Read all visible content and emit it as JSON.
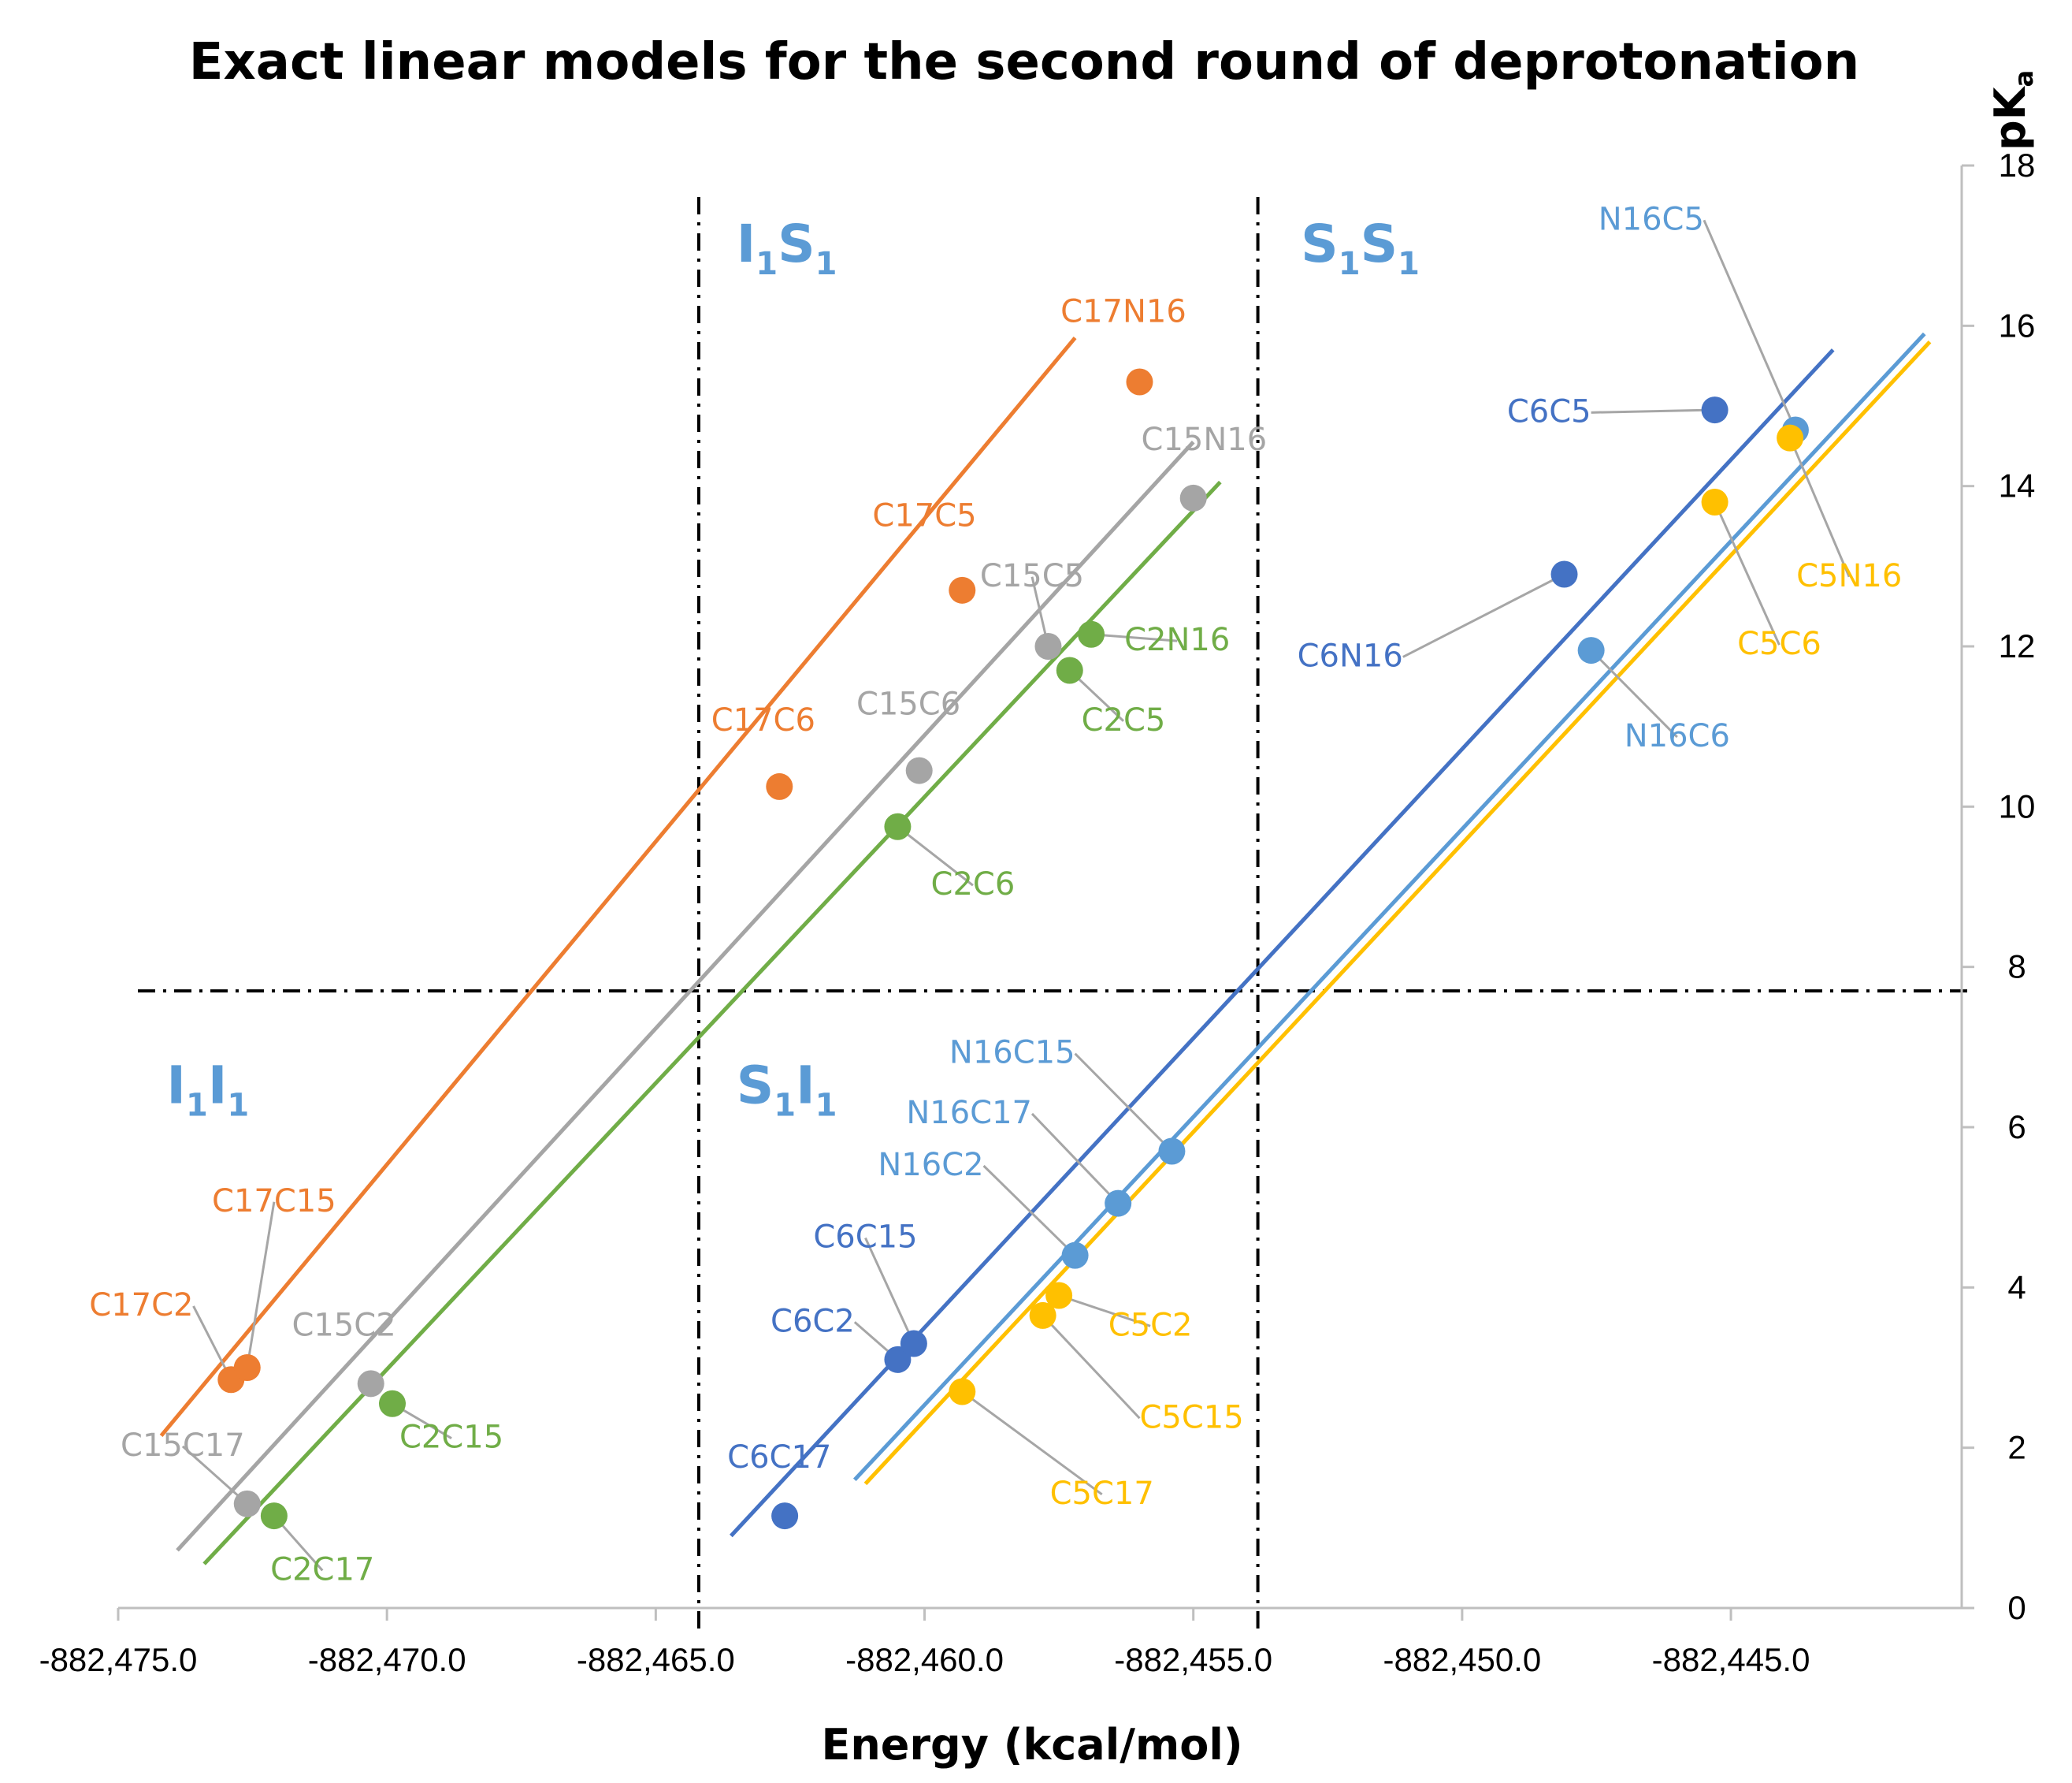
{
  "chart_data": {
    "type": "scatter",
    "title": "Exact linear models for the second round of deprotonation",
    "xlabel": "Energy (kcal/mol)",
    "ylabel": "pKa",
    "ylabel_main": "pK",
    "ylabel_sub": "a",
    "xlim": [
      -882475.0,
      -882441.0
    ],
    "ylim": [
      0,
      18
    ],
    "xticks": [
      -882475.0,
      -882470.0,
      -882465.0,
      -882460.0,
      -882455.0,
      -882450.0,
      -882445.0
    ],
    "xtick_labels": [
      "-882,475.0",
      "-882,470.0",
      "-882,465.0",
      "-882,460.0",
      "-882,455.0",
      "-882,450.0",
      "-882,445.0"
    ],
    "yticks": [
      0,
      2,
      4,
      6,
      8,
      10,
      12,
      14,
      16,
      18
    ],
    "ytick_labels": [
      "0",
      "2",
      "4",
      "6",
      "8",
      "10",
      "12",
      "14",
      "16",
      "18"
    ],
    "divider_x": [
      -882464.2,
      -882453.8
    ],
    "divider_y": 7.7,
    "regions": [
      {
        "main": "I",
        "sub1": "1",
        "main2": "I",
        "sub2": "1",
        "x": -882474.1,
        "y": 6.3
      },
      {
        "main": "I",
        "sub1": "1",
        "main2": "S",
        "sub2": "1",
        "x": -882463.5,
        "y": 16.8
      },
      {
        "main": "S",
        "sub1": "1",
        "main2": "I",
        "sub2": "1",
        "x": -882463.5,
        "y": 6.3
      },
      {
        "main": "S",
        "sub1": "1",
        "main2": "S",
        "sub2": "1",
        "x": -882453.0,
        "y": 16.8
      }
    ],
    "series": [
      {
        "name": "C17 (orange)",
        "color": "#ed7d31",
        "line": [
          [
            -882474.2,
            2.15
          ],
          [
            -882457.2,
            15.85
          ]
        ],
        "points": [
          {
            "label": "C17C2",
            "x": -882472.9,
            "y": 2.85,
            "lx": -882473.6,
            "ly": 3.65,
            "anchor": "end",
            "leader": true
          },
          {
            "label": "C17C15",
            "x": -882472.6,
            "y": 3.0,
            "lx": -882472.1,
            "ly": 4.95,
            "anchor": "middle",
            "leader": true
          },
          {
            "label": "C17C6",
            "x": -882462.7,
            "y": 10.25,
            "lx": -882463.0,
            "ly": 10.95,
            "anchor": "middle",
            "leader": false
          },
          {
            "label": "C17C5",
            "x": -882459.3,
            "y": 12.7,
            "lx": -882460.0,
            "ly": 13.5,
            "anchor": "middle",
            "leader": false
          },
          {
            "label": "C17N16",
            "x": -882456.0,
            "y": 15.3,
            "lx": -882456.3,
            "ly": 16.05,
            "anchor": "middle",
            "leader": false
          }
        ]
      },
      {
        "name": "C15 (gray)",
        "color": "#a5a5a5",
        "line": [
          [
            -882473.9,
            0.72
          ],
          [
            -882455.0,
            14.55
          ]
        ],
        "points": [
          {
            "label": "C15C17",
            "x": -882472.6,
            "y": 1.3,
            "lx": -882473.8,
            "ly": 1.9,
            "anchor": "middle",
            "leader": true
          },
          {
            "label": "C15C2",
            "x": -882470.3,
            "y": 2.8,
            "lx": -882470.8,
            "ly": 3.4,
            "anchor": "middle",
            "leader": false
          },
          {
            "label": "C15C6",
            "x": -882460.1,
            "y": 10.45,
            "lx": -882460.3,
            "ly": 11.15,
            "anchor": "middle",
            "leader": false
          },
          {
            "label": "C15C5",
            "x": -882457.7,
            "y": 12.0,
            "lx": -882458.0,
            "ly": 12.75,
            "anchor": "middle",
            "leader": true
          },
          {
            "label": "C15N16",
            "x": -882455.0,
            "y": 13.85,
            "lx": -882454.8,
            "ly": 14.45,
            "anchor": "middle",
            "leader": false
          }
        ]
      },
      {
        "name": "C2 (green)",
        "color": "#70ad47",
        "line": [
          [
            -882473.4,
            0.55
          ],
          [
            -882454.5,
            14.05
          ]
        ],
        "points": [
          {
            "label": "C2C17",
            "x": -882472.1,
            "y": 1.15,
            "lx": -882471.2,
            "ly": 0.35,
            "anchor": "middle",
            "leader": true
          },
          {
            "label": "C2C15",
            "x": -882469.9,
            "y": 2.55,
            "lx": -882468.8,
            "ly": 2.0,
            "anchor": "middle",
            "leader": true
          },
          {
            "label": "C2C6",
            "x": -882460.5,
            "y": 9.75,
            "lx": -882459.1,
            "ly": 8.9,
            "anchor": "middle",
            "leader": true
          },
          {
            "label": "C2C5",
            "x": -882457.3,
            "y": 11.7,
            "lx": -882456.3,
            "ly": 10.95,
            "anchor": "middle",
            "leader": true
          },
          {
            "label": "C2N16",
            "x": -882456.9,
            "y": 12.15,
            "lx": -882455.3,
            "ly": 11.95,
            "anchor": "middle",
            "leader": true
          }
        ]
      },
      {
        "name": "C6 (dark blue)",
        "color": "#4472c4",
        "line": [
          [
            -882463.6,
            0.9
          ],
          [
            -882443.1,
            15.7
          ]
        ],
        "points": [
          {
            "label": "C6C17",
            "x": -882462.6,
            "y": 1.15,
            "lx": -882462.7,
            "ly": 1.75,
            "anchor": "middle",
            "leader": false
          },
          {
            "label": "C6C2",
            "x": -882460.5,
            "y": 3.1,
            "lx": -882461.3,
            "ly": 3.45,
            "anchor": "end",
            "leader": true
          },
          {
            "label": "C6C15",
            "x": -882460.2,
            "y": 3.3,
            "lx": -882461.1,
            "ly": 4.5,
            "anchor": "middle",
            "leader": true
          },
          {
            "label": "C6N16",
            "x": -882448.1,
            "y": 12.9,
            "lx": -882451.1,
            "ly": 11.75,
            "anchor": "end",
            "leader": true
          },
          {
            "label": "C6C5",
            "x": -882445.3,
            "y": 14.95,
            "lx": -882447.6,
            "ly": 14.8,
            "anchor": "end",
            "leader": true
          }
        ]
      },
      {
        "name": "N16 (light blue)",
        "color": "#5b9bd5",
        "line": [
          [
            -882461.3,
            1.6
          ],
          [
            -882441.4,
            15.9
          ]
        ],
        "points": [
          {
            "label": "N16C2",
            "x": -882457.2,
            "y": 4.4,
            "lx": -882458.9,
            "ly": 5.4,
            "anchor": "end",
            "leader": true
          },
          {
            "label": "N16C17",
            "x": -882456.4,
            "y": 5.05,
            "lx": -882458.0,
            "ly": 6.05,
            "anchor": "end",
            "leader": true
          },
          {
            "label": "N16C15",
            "x": -882455.4,
            "y": 5.7,
            "lx": -882457.2,
            "ly": 6.8,
            "anchor": "end",
            "leader": true
          },
          {
            "label": "N16C6",
            "x": -882447.6,
            "y": 11.95,
            "lx": -882446.0,
            "ly": 10.75,
            "anchor": "middle",
            "leader": true
          },
          {
            "label": "N16C5",
            "x": -882443.8,
            "y": 14.7,
            "lx": -882445.5,
            "ly": 17.2,
            "anchor": "end",
            "leader": true
          }
        ]
      },
      {
        "name": "C5 (yellow)",
        "color": "#ffc000",
        "line": [
          [
            -882461.1,
            1.55
          ],
          [
            -882441.3,
            15.8
          ]
        ],
        "points": [
          {
            "label": "C5C17",
            "x": -882459.3,
            "y": 2.7,
            "lx": -882456.7,
            "ly": 1.3,
            "anchor": "middle",
            "leader": true
          },
          {
            "label": "C5C15",
            "x": -882457.8,
            "y": 3.65,
            "lx": -882456.0,
            "ly": 2.25,
            "anchor": "start",
            "leader": true
          },
          {
            "label": "C5C2",
            "x": -882457.5,
            "y": 3.9,
            "lx": -882455.8,
            "ly": 3.4,
            "anchor": "middle",
            "leader": true
          },
          {
            "label": "C5C6",
            "x": -882445.3,
            "y": 13.8,
            "lx": -882444.1,
            "ly": 11.9,
            "anchor": "middle",
            "leader": true
          },
          {
            "label": "C5N16",
            "x": -882443.9,
            "y": 14.6,
            "lx": -882442.8,
            "ly": 12.75,
            "anchor": "middle",
            "leader": true
          }
        ]
      }
    ]
  }
}
